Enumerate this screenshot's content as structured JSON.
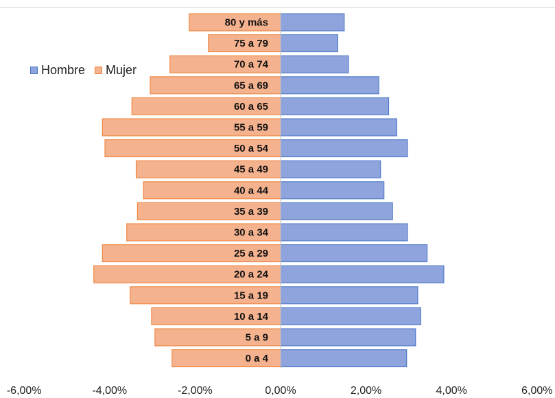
{
  "chart_data": {
    "type": "bar",
    "orientation": "horizontal",
    "categories": [
      "0 a 4",
      "5 a 9",
      "10 a 14",
      "15 a 19",
      "20 a 24",
      "25 a 29",
      "30 a 34",
      "35 a 39",
      "40 a 44",
      "45 a 49",
      "50 a 54",
      "55 a 59",
      "60 a 65",
      "65 a 69",
      "70 a 74",
      "75 a 79",
      "80 y más"
    ],
    "series": [
      {
        "name": "Hombre",
        "color": "#8fa4dc",
        "border": "#4472c4",
        "values": [
          2.95,
          3.16,
          3.28,
          3.21,
          3.82,
          3.43,
          2.97,
          2.62,
          2.42,
          2.34,
          2.97,
          2.72,
          2.53,
          2.3,
          1.59,
          1.34,
          1.49
        ]
      },
      {
        "name": "Mujer",
        "color": "#f5b28e",
        "border": "#ed7d31",
        "values": [
          -2.54,
          -2.94,
          -3.02,
          -3.52,
          -4.37,
          -4.17,
          -3.6,
          -3.35,
          -3.21,
          -3.38,
          -4.11,
          -4.17,
          -3.48,
          -3.05,
          -2.59,
          -1.69,
          -2.14
        ]
      }
    ],
    "xlim": [
      -6,
      6
    ],
    "xticks": [
      -6,
      -4,
      -2,
      0,
      2,
      4,
      6
    ],
    "xtick_labels": [
      "-6,00%",
      "-4,00%",
      "-2,00%",
      "0,00%",
      "2,00%",
      "4,00%",
      "6,00%"
    ],
    "title": "",
    "xlabel": "",
    "ylabel": "",
    "grid": false,
    "legend_position": "top-left"
  }
}
